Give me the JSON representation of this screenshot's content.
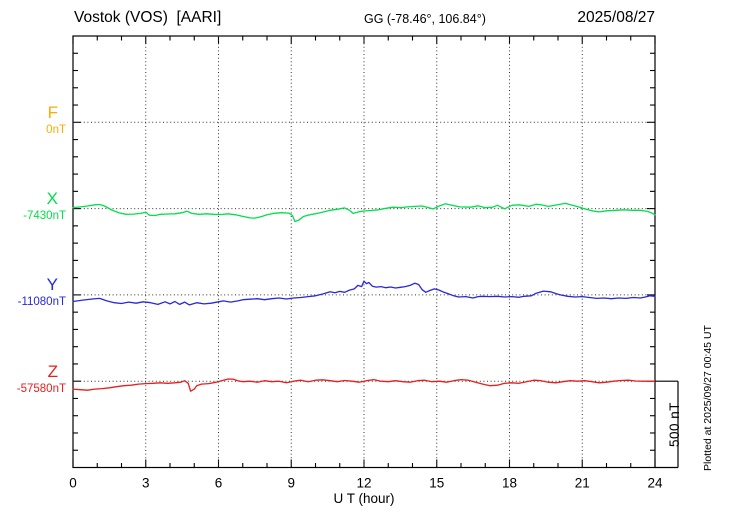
{
  "chart_data": {
    "type": "line",
    "station_title": "Vostok (VOS)  [AARI]",
    "geographic_label": "GG (-78.46°, 106.84°)",
    "date": "2025/08/27",
    "xlabel": "U T (hour)",
    "x_range": [
      0,
      24
    ],
    "x_major_ticks": [
      0,
      3,
      6,
      9,
      12,
      15,
      18,
      21,
      24
    ],
    "x_minor_step_hours": 1,
    "y_minor_step_nT": 100,
    "y_channel_spacing_nT": 500,
    "grid_style": "dotted vertical lines every 3 hours, dotted horizontal line at each channel baseline",
    "scale_bar_label": "500 nT",
    "scale_bar_span_nT": 500,
    "plotted_note": "Plotted at 2025/09/27 00:45 UT",
    "colors": {
      "axis": "#000000",
      "grid": "#333333"
    },
    "series": [
      {
        "name": "F",
        "baseline_label": "0nT",
        "color": "#FFAA00",
        "points_hour_offset_nT": []
      },
      {
        "name": "X",
        "baseline_label": "-7430nT",
        "color": "#00E04A",
        "points_hour_offset_nT": [
          [
            0,
            5
          ],
          [
            0.3,
            10
          ],
          [
            0.6,
            15
          ],
          [
            0.9,
            22
          ],
          [
            1.1,
            24
          ],
          [
            1.3,
            15
          ],
          [
            1.6,
            -8
          ],
          [
            1.9,
            -25
          ],
          [
            2.2,
            -33
          ],
          [
            2.5,
            -32
          ],
          [
            2.8,
            -28
          ],
          [
            3,
            -20
          ],
          [
            3.15,
            -38
          ],
          [
            3.4,
            -40
          ],
          [
            3.6,
            -33
          ],
          [
            3.9,
            -31
          ],
          [
            4.2,
            -30
          ],
          [
            4.5,
            -24
          ],
          [
            4.7,
            -15
          ],
          [
            4.9,
            -28
          ],
          [
            5.2,
            -33
          ],
          [
            5.5,
            -30
          ],
          [
            5.8,
            -33
          ],
          [
            6.1,
            -34
          ],
          [
            6.4,
            -30
          ],
          [
            6.7,
            -36
          ],
          [
            7,
            -45
          ],
          [
            7.3,
            -54
          ],
          [
            7.5,
            -55
          ],
          [
            7.8,
            -45
          ],
          [
            8,
            -36
          ],
          [
            8.3,
            -27
          ],
          [
            8.6,
            -24
          ],
          [
            8.9,
            -26
          ],
          [
            9.05,
            -40
          ],
          [
            9.15,
            -75
          ],
          [
            9.3,
            -68
          ],
          [
            9.5,
            -46
          ],
          [
            9.8,
            -34
          ],
          [
            10,
            -30
          ],
          [
            10.3,
            -20
          ],
          [
            10.6,
            -10
          ],
          [
            10.9,
            -4
          ],
          [
            11.2,
            4
          ],
          [
            11.4,
            -10
          ],
          [
            11.55,
            -28
          ],
          [
            11.8,
            -18
          ],
          [
            12,
            -14
          ],
          [
            12.3,
            -11
          ],
          [
            12.6,
            -7
          ],
          [
            12.9,
            2
          ],
          [
            13.2,
            8
          ],
          [
            13.5,
            6
          ],
          [
            13.8,
            10
          ],
          [
            14.1,
            13
          ],
          [
            14.4,
            15
          ],
          [
            14.6,
            8
          ],
          [
            14.85,
            -2
          ],
          [
            15.1,
            15
          ],
          [
            15.35,
            28
          ],
          [
            15.6,
            20
          ],
          [
            15.95,
            10
          ],
          [
            16.4,
            8
          ],
          [
            16.7,
            16
          ],
          [
            17,
            5
          ],
          [
            17.3,
            8
          ],
          [
            17.5,
            19
          ],
          [
            17.8,
            -1
          ],
          [
            18.1,
            19
          ],
          [
            18.4,
            22
          ],
          [
            18.8,
            13
          ],
          [
            19.1,
            25
          ],
          [
            19.3,
            22
          ],
          [
            19.6,
            13
          ],
          [
            19.9,
            20
          ],
          [
            20.3,
            30
          ],
          [
            20.6,
            19
          ],
          [
            20.9,
            8
          ],
          [
            21.1,
            -2
          ],
          [
            21.4,
            -13
          ],
          [
            21.7,
            -19
          ],
          [
            22,
            -13
          ],
          [
            22.4,
            -10
          ],
          [
            22.7,
            -7
          ],
          [
            23.1,
            -10
          ],
          [
            23.4,
            -10
          ],
          [
            23.7,
            -16
          ],
          [
            23.9,
            -28
          ],
          [
            24,
            -36
          ]
        ]
      },
      {
        "name": "Y",
        "baseline_label": "-11080nT",
        "color": "#2828DC",
        "points_hour_offset_nT": [
          [
            0,
            -38
          ],
          [
            0.4,
            -30
          ],
          [
            0.8,
            -24
          ],
          [
            1.1,
            -20
          ],
          [
            1.4,
            -35
          ],
          [
            1.7,
            -45
          ],
          [
            2,
            -50
          ],
          [
            2.3,
            -42
          ],
          [
            2.6,
            -48
          ],
          [
            2.9,
            -40
          ],
          [
            3.2,
            -45
          ],
          [
            3.5,
            -55
          ],
          [
            3.8,
            -40
          ],
          [
            4,
            -52
          ],
          [
            4.2,
            -38
          ],
          [
            4.4,
            -55
          ],
          [
            4.6,
            -42
          ],
          [
            4.8,
            -58
          ],
          [
            5.1,
            -45
          ],
          [
            5.4,
            -52
          ],
          [
            5.7,
            -48
          ],
          [
            6,
            -40
          ],
          [
            6.2,
            -35
          ],
          [
            6.5,
            -42
          ],
          [
            6.8,
            -35
          ],
          [
            7,
            -28
          ],
          [
            7.3,
            -25
          ],
          [
            7.6,
            -22
          ],
          [
            7.9,
            -28
          ],
          [
            8.2,
            -22
          ],
          [
            8.5,
            -18
          ],
          [
            8.8,
            -24
          ],
          [
            9.1,
            -18
          ],
          [
            9.4,
            -15
          ],
          [
            9.7,
            -10
          ],
          [
            10,
            -5
          ],
          [
            10.3,
            5
          ],
          [
            10.6,
            18
          ],
          [
            10.8,
            12
          ],
          [
            11,
            20
          ],
          [
            11.2,
            15
          ],
          [
            11.4,
            28
          ],
          [
            11.6,
            35
          ],
          [
            11.75,
            55
          ],
          [
            11.9,
            48
          ],
          [
            12,
            80
          ],
          [
            12.1,
            65
          ],
          [
            12.2,
            72
          ],
          [
            12.35,
            50
          ],
          [
            12.5,
            45
          ],
          [
            12.7,
            48
          ],
          [
            12.9,
            42
          ],
          [
            13.1,
            46
          ],
          [
            13.3,
            40
          ],
          [
            13.5,
            44
          ],
          [
            13.7,
            48
          ],
          [
            13.9,
            55
          ],
          [
            14.1,
            68
          ],
          [
            14.25,
            60
          ],
          [
            14.4,
            30
          ],
          [
            14.55,
            15
          ],
          [
            14.7,
            25
          ],
          [
            14.9,
            35
          ],
          [
            15.1,
            28
          ],
          [
            15.3,
            15
          ],
          [
            15.5,
            5
          ],
          [
            15.7,
            -5
          ],
          [
            15.9,
            -12
          ],
          [
            16.2,
            -10
          ],
          [
            16.5,
            -18
          ],
          [
            16.7,
            -10
          ],
          [
            16.9,
            -8
          ],
          [
            17.2,
            -10
          ],
          [
            17.5,
            -8
          ],
          [
            17.8,
            -12
          ],
          [
            18.1,
            -10
          ],
          [
            18.4,
            -14
          ],
          [
            18.6,
            -8
          ],
          [
            18.9,
            -5
          ],
          [
            19.1,
            10
          ],
          [
            19.4,
            22
          ],
          [
            19.7,
            18
          ],
          [
            19.9,
            8
          ],
          [
            20.1,
            0
          ],
          [
            20.4,
            -8
          ],
          [
            20.7,
            -12
          ],
          [
            21,
            -10
          ],
          [
            21.3,
            -15
          ],
          [
            21.6,
            -20
          ],
          [
            21.9,
            -18
          ],
          [
            22.2,
            -22
          ],
          [
            22.5,
            -18
          ],
          [
            22.8,
            -20
          ],
          [
            23.1,
            -15
          ],
          [
            23.4,
            -18
          ],
          [
            23.6,
            -12
          ],
          [
            23.8,
            -5
          ],
          [
            24,
            -8
          ]
        ]
      },
      {
        "name": "Z",
        "baseline_label": "-57580nT",
        "color": "#E81E1E",
        "points_hour_offset_nT": [
          [
            0,
            -46
          ],
          [
            0.3,
            -49
          ],
          [
            0.6,
            -52
          ],
          [
            0.9,
            -46
          ],
          [
            1.2,
            -43
          ],
          [
            1.5,
            -38
          ],
          [
            1.8,
            -32
          ],
          [
            2.1,
            -26
          ],
          [
            2.4,
            -23
          ],
          [
            2.7,
            -17
          ],
          [
            3,
            -14
          ],
          [
            3.3,
            -12
          ],
          [
            3.6,
            -9
          ],
          [
            3.9,
            -12
          ],
          [
            4.2,
            -9
          ],
          [
            4.45,
            -6
          ],
          [
            4.6,
            3
          ],
          [
            4.75,
            -12
          ],
          [
            4.85,
            -58
          ],
          [
            5,
            -46
          ],
          [
            5.1,
            -26
          ],
          [
            5.3,
            -17
          ],
          [
            5.6,
            -14
          ],
          [
            5.9,
            -6
          ],
          [
            6.2,
            6
          ],
          [
            6.4,
            13
          ],
          [
            6.6,
            12
          ],
          [
            6.8,
            3
          ],
          [
            7,
            -3
          ],
          [
            7.3,
            0
          ],
          [
            7.6,
            -6
          ],
          [
            7.9,
            3
          ],
          [
            8.2,
            -3
          ],
          [
            8.5,
            0
          ],
          [
            8.8,
            -9
          ],
          [
            9.1,
            0
          ],
          [
            9.4,
            6
          ],
          [
            9.7,
            -3
          ],
          [
            10,
            6
          ],
          [
            10.3,
            8
          ],
          [
            10.6,
            3
          ],
          [
            10.9,
            -3
          ],
          [
            11.2,
            4
          ],
          [
            11.5,
            0
          ],
          [
            11.8,
            -6
          ],
          [
            12.1,
            3
          ],
          [
            12.4,
            9
          ],
          [
            12.7,
            0
          ],
          [
            13,
            -3
          ],
          [
            13.3,
            3
          ],
          [
            13.6,
            -3
          ],
          [
            13.9,
            -6
          ],
          [
            14.2,
            3
          ],
          [
            14.5,
            6
          ],
          [
            14.8,
            -3
          ],
          [
            15.1,
            0
          ],
          [
            15.4,
            -6
          ],
          [
            15.7,
            3
          ],
          [
            16,
            9
          ],
          [
            16.3,
            6
          ],
          [
            16.6,
            -6
          ],
          [
            16.9,
            -17
          ],
          [
            17.2,
            -26
          ],
          [
            17.5,
            -23
          ],
          [
            17.8,
            -12
          ],
          [
            18.1,
            -9
          ],
          [
            18.4,
            -12
          ],
          [
            18.7,
            -3
          ],
          [
            19,
            6
          ],
          [
            19.3,
            3
          ],
          [
            19.6,
            -6
          ],
          [
            19.9,
            -9
          ],
          [
            20.2,
            -3
          ],
          [
            20.5,
            3
          ],
          [
            20.8,
            0
          ],
          [
            21.1,
            3
          ],
          [
            21.4,
            -3
          ],
          [
            21.7,
            -9
          ],
          [
            22,
            -6
          ],
          [
            22.3,
            0
          ],
          [
            22.6,
            4
          ],
          [
            22.9,
            6
          ],
          [
            23.2,
            1
          ],
          [
            23.5,
            0
          ],
          [
            23.8,
            0
          ],
          [
            24,
            0
          ]
        ]
      }
    ]
  }
}
